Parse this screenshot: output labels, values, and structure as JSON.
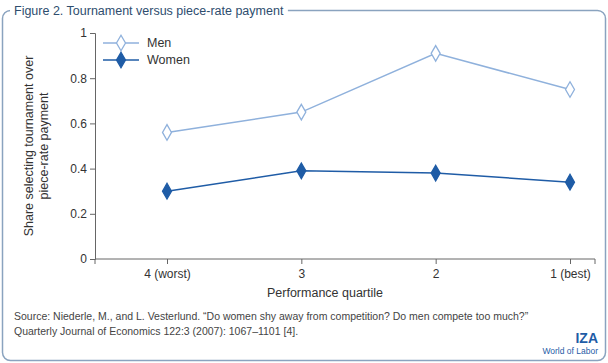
{
  "chart_data": {
    "type": "line",
    "title": "Figure 2. Tournament versus piece-rate payment",
    "x_label": "Performance quartile",
    "y_label": "Share selecting tournament over piece-rate payment",
    "categories": [
      "4 (worst)",
      "3",
      "2",
      "1 (best)"
    ],
    "series": [
      {
        "name": "Men",
        "color": "#8fb1dc",
        "marker": "open-diamond",
        "line_style": "solid",
        "values": [
          0.56,
          0.65,
          0.91,
          0.75
        ]
      },
      {
        "name": "Women",
        "color": "#1f5ca6",
        "marker": "diamond",
        "line_style": "solid",
        "values": [
          0.3,
          0.39,
          0.38,
          0.34
        ]
      }
    ],
    "ylim": [
      0,
      1
    ],
    "yticks": [
      0,
      0.2,
      0.4,
      0.6,
      0.8,
      1
    ],
    "grid": false,
    "legend": "upper left",
    "source": [
      "Source: Niederle, M., and L. Vesterlund. “Do women shy away from competition? Do men compete too much?”",
      "Quarterly Journal of Economics 122:3 (2007): 1067–1101 [4]."
    ],
    "logo": [
      "IZA",
      "World of Labor"
    ]
  }
}
